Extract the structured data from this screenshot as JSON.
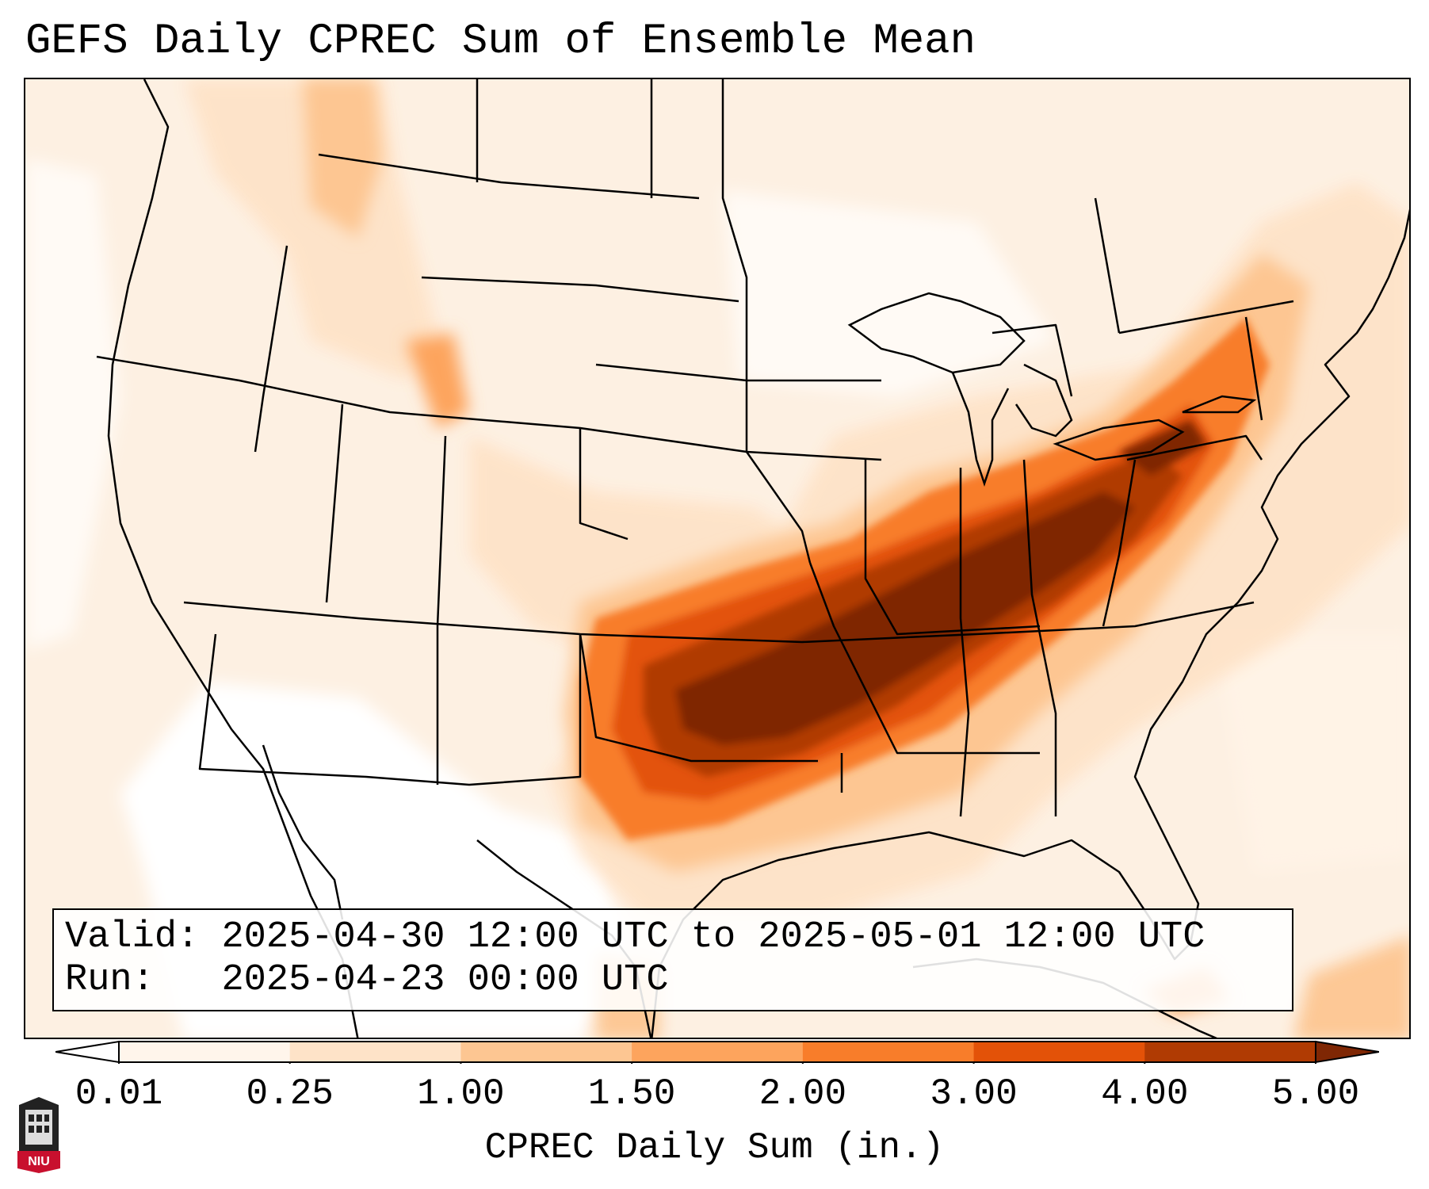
{
  "title": "GEFS Daily CPREC Sum of Ensemble Mean",
  "info": {
    "valid_label": "Valid:",
    "valid_value": "2025-04-30 12:00 UTC to 2025-05-01 12:00 UTC",
    "run_label": "Run:",
    "run_value": "2025-04-23 00:00 UTC"
  },
  "colorbar": {
    "label": "CPREC Daily Sum (in.)",
    "ticks": [
      "0.01",
      "0.25",
      "1.00",
      "1.50",
      "2.00",
      "3.00",
      "4.00",
      "5.00"
    ],
    "colors": [
      "#fff5eb",
      "#fee3c8",
      "#fdc692",
      "#fda45d",
      "#f87d2a",
      "#e35208",
      "#b03b03",
      "#7f2704"
    ],
    "under_color": "#ffffff",
    "over_color": "#7f2704"
  },
  "logo": {
    "text": "NIU"
  }
}
